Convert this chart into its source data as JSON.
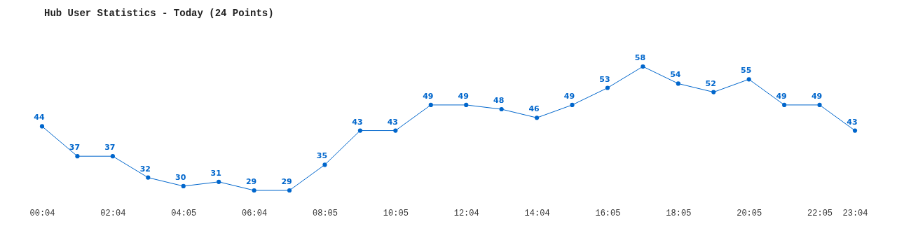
{
  "chart_data": {
    "type": "line",
    "title": "Hub User Statistics - Today (24 Points)",
    "categories": [
      "00:04",
      null,
      "02:04",
      null,
      "04:05",
      null,
      "06:04",
      null,
      "08:05",
      null,
      "10:05",
      null,
      "12:04",
      null,
      "14:04",
      null,
      "16:05",
      null,
      "18:05",
      null,
      "20:05",
      null,
      "22:05",
      "23:04"
    ],
    "series": [
      {
        "color": "#0066cc",
        "values": [
          44,
          37,
          37,
          32,
          30,
          31,
          29,
          29,
          35,
          43,
          43,
          49,
          49,
          48,
          46,
          49,
          53,
          58,
          54,
          52,
          55,
          49,
          49,
          43
        ]
      }
    ],
    "data_labels": true,
    "marker": "circle",
    "grid": false
  }
}
